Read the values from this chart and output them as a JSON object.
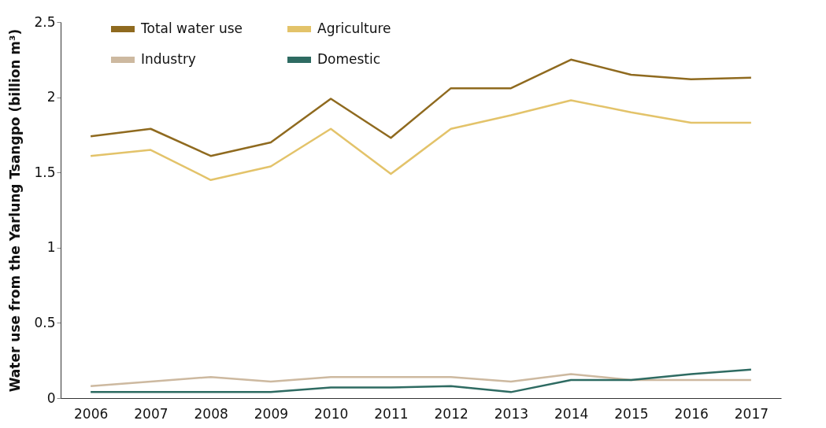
{
  "chart_data": {
    "type": "line",
    "categories": [
      "2006",
      "2007",
      "2008",
      "2009",
      "2010",
      "2011",
      "2012",
      "2013",
      "2014",
      "2015",
      "2016",
      "2017"
    ],
    "ylabel": "Water use from the Yarlung Tsangpo (billion m³)",
    "ylim": [
      0,
      2.5
    ],
    "yticks": [
      0,
      0.5,
      1,
      1.5,
      2,
      2.5
    ],
    "grid": false,
    "legend": "top left",
    "marker": "none",
    "line_style": "solid",
    "series": [
      {
        "name": "Total water use",
        "color": "#8f6a1f",
        "values": [
          1.74,
          1.79,
          1.61,
          1.7,
          1.99,
          1.73,
          2.06,
          2.06,
          2.25,
          2.15,
          2.12,
          2.13
        ]
      },
      {
        "name": "Agriculture",
        "color": "#e3c36a",
        "values": [
          1.61,
          1.65,
          1.45,
          1.54,
          1.79,
          1.49,
          1.79,
          1.88,
          1.98,
          1.9,
          1.83,
          1.83
        ]
      },
      {
        "name": "Industry",
        "color": "#cdb9a0",
        "values": [
          0.08,
          0.11,
          0.14,
          0.11,
          0.14,
          0.14,
          0.14,
          0.11,
          0.16,
          0.12,
          0.12,
          0.12
        ]
      },
      {
        "name": "Domestic",
        "color": "#2e6b62",
        "values": [
          0.04,
          0.04,
          0.04,
          0.04,
          0.07,
          0.07,
          0.08,
          0.04,
          0.12,
          0.12,
          0.16,
          0.19
        ]
      }
    ]
  }
}
